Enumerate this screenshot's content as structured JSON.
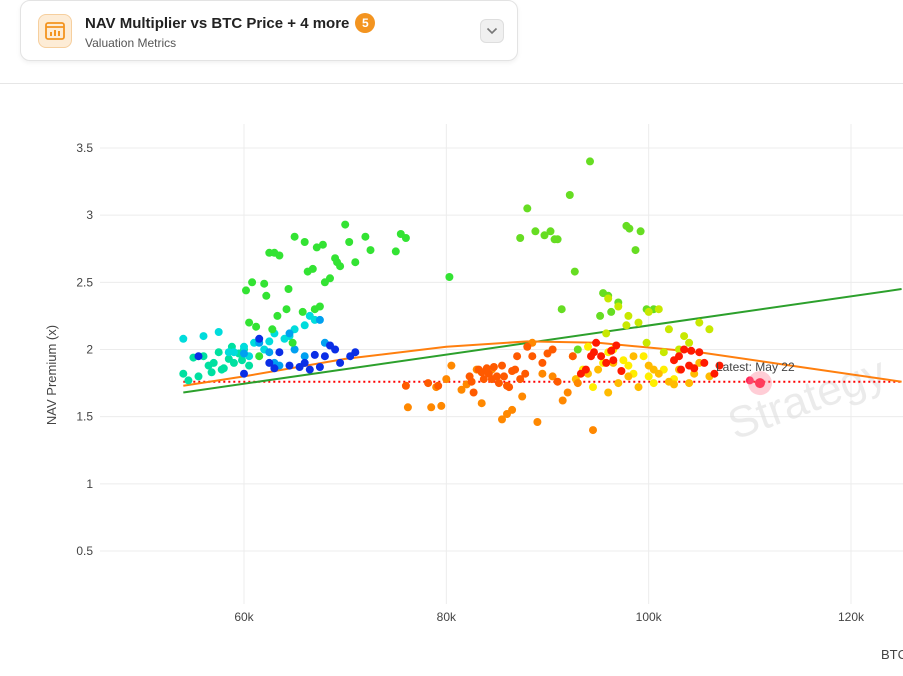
{
  "header": {
    "title": "NAV Multiplier vs BTC Price + 4 more",
    "badge": "5",
    "subtitle": "Valuation Metrics",
    "icon": "chart-icon",
    "dropdown_icon": "chevron-down-icon",
    "accent_color": "#f39420"
  },
  "chart_data": {
    "type": "scatter",
    "title": "",
    "xlabel": "BTC",
    "ylabel": "NAV Premium (x)",
    "xlim": [
      45000,
      125000
    ],
    "ylim": [
      0,
      3.6
    ],
    "x_ticks": [
      60000,
      80000,
      100000,
      120000
    ],
    "x_tick_labels": [
      "60k",
      "80k",
      "100k",
      "120k"
    ],
    "y_ticks": [
      0.5,
      1,
      1.5,
      2,
      2.5,
      3,
      3.5
    ],
    "y_tick_labels": [
      "0.5",
      "1",
      "1.5",
      "2",
      "2.5",
      "3",
      "3.5"
    ],
    "grid": true,
    "annotation": "Latest: May 22",
    "watermark": "Strategy",
    "latest_point": {
      "x": 111000,
      "y": 1.75
    },
    "reference_line": {
      "y": 1.76,
      "color": "#ff0000",
      "style": "dotted"
    },
    "trend_linear": {
      "x": [
        54000,
        125000
      ],
      "y": [
        1.68,
        2.45
      ],
      "color": "#2ca02c"
    },
    "trend_quadratic": {
      "x": [
        54000,
        60000,
        70000,
        80000,
        88000,
        95000,
        105000,
        115000,
        125000
      ],
      "y": [
        1.73,
        1.8,
        1.93,
        2.02,
        2.06,
        2.05,
        1.98,
        1.87,
        1.76
      ],
      "color": "#ff7f0e"
    },
    "series": [
      {
        "color": "#00e0a0",
        "x": [
          54000,
          54500,
          55500,
          56000,
          56500,
          57000,
          57500,
          58000,
          58500,
          59000,
          59500,
          60000,
          55000,
          57800,
          58800,
          59800,
          60500,
          56800
        ],
        "y": [
          1.82,
          1.77,
          1.8,
          1.95,
          1.88,
          1.9,
          1.98,
          1.86,
          1.93,
          1.9,
          1.97,
          2.0,
          1.94,
          1.85,
          2.02,
          1.92,
          1.88,
          1.83
        ]
      },
      {
        "color": "#00dcdc",
        "x": [
          54000,
          56000,
          57500,
          59000,
          60500,
          61000,
          62000,
          63000,
          64000,
          65000,
          66000,
          67000,
          60000,
          58500,
          62500,
          64500,
          66500
        ],
        "y": [
          2.08,
          2.1,
          2.13,
          1.98,
          1.95,
          2.05,
          2.0,
          2.12,
          2.08,
          2.15,
          2.18,
          2.22,
          2.02,
          1.98,
          2.06,
          2.1,
          2.25
        ]
      },
      {
        "color": "#00a0f0",
        "x": [
          61500,
          63000,
          64500,
          66000,
          67500,
          62500,
          65000,
          68000,
          63500,
          60000
        ],
        "y": [
          2.05,
          1.9,
          2.12,
          1.95,
          2.22,
          1.98,
          2.0,
          2.05,
          1.88,
          1.97
        ]
      },
      {
        "color": "#0a2ee6",
        "x": [
          55500,
          60000,
          61500,
          62500,
          63500,
          64500,
          65500,
          66500,
          67500,
          68500,
          69500,
          70500,
          71000,
          68000,
          66000,
          63000,
          69000,
          67000
        ],
        "y": [
          1.95,
          1.82,
          2.08,
          1.9,
          1.98,
          1.88,
          1.87,
          1.85,
          1.87,
          2.03,
          1.9,
          1.95,
          1.98,
          1.95,
          1.9,
          1.86,
          2.0,
          1.96
        ]
      },
      {
        "color": "#33e333",
        "x": [
          60200,
          60800,
          61200,
          62000,
          62200,
          62500,
          63000,
          63500,
          64200,
          65000,
          66000,
          66800,
          67200,
          67800,
          68500,
          69000,
          69500,
          70000,
          70400,
          72000,
          72500,
          75000,
          75500,
          76000,
          80300,
          60500,
          63300,
          65800,
          67500,
          69200,
          66300,
          71000,
          64400,
          68000,
          64800,
          62800,
          61500,
          67000
        ],
        "y": [
          2.44,
          2.5,
          2.17,
          2.49,
          2.4,
          2.72,
          2.72,
          2.7,
          2.3,
          2.84,
          2.8,
          2.6,
          2.76,
          2.78,
          2.53,
          2.68,
          2.62,
          2.93,
          2.8,
          2.84,
          2.74,
          2.73,
          2.86,
          2.83,
          2.54,
          2.2,
          2.25,
          2.28,
          2.32,
          2.65,
          2.58,
          2.65,
          2.45,
          2.5,
          2.05,
          2.15,
          1.95,
          2.3
        ]
      },
      {
        "color": "#66dd22",
        "x": [
          87300,
          88000,
          88800,
          89700,
          90300,
          90700,
          91000,
          91400,
          92200,
          92700,
          93000,
          94200,
          95500,
          96000,
          97000,
          97800,
          98100,
          98700,
          99200,
          99800,
          100500,
          96300,
          95200
        ],
        "y": [
          2.83,
          3.05,
          2.88,
          2.85,
          2.88,
          2.82,
          2.82,
          2.3,
          3.15,
          2.58,
          2.0,
          3.4,
          2.42,
          2.4,
          2.35,
          2.92,
          2.9,
          2.74,
          2.88,
          2.3,
          2.3,
          2.28,
          2.25
        ]
      },
      {
        "color": "#c8e800",
        "x": [
          96000,
          97000,
          98000,
          99000,
          100000,
          101000,
          102000,
          103000,
          104000,
          105000,
          106000,
          95800,
          97800,
          99800,
          101500,
          103500
        ],
        "y": [
          2.38,
          2.32,
          2.25,
          2.2,
          2.28,
          2.3,
          2.15,
          2.0,
          2.05,
          2.2,
          2.15,
          2.12,
          2.18,
          2.05,
          1.98,
          2.1
        ]
      },
      {
        "color": "#ffee00",
        "x": [
          92500,
          93500,
          94500,
          95500,
          96500,
          97500,
          98500,
          99500,
          100500,
          101500,
          102500,
          94000,
          96000,
          98000,
          100000
        ],
        "y": [
          1.95,
          1.85,
          1.72,
          1.9,
          2.0,
          1.92,
          1.82,
          1.95,
          1.75,
          1.85,
          1.78,
          2.02,
          1.98,
          1.88,
          1.8
        ]
      },
      {
        "color": "#ffbb00",
        "x": [
          92800,
          94000,
          95000,
          96000,
          97000,
          98000,
          99000,
          100000,
          101000,
          102000,
          103000,
          104000,
          105000,
          106000,
          96500,
          98500,
          100500,
          102500,
          104500
        ],
        "y": [
          1.78,
          1.82,
          1.85,
          1.68,
          1.75,
          1.8,
          1.72,
          1.88,
          1.82,
          1.76,
          1.85,
          1.75,
          1.9,
          1.8,
          1.9,
          1.95,
          1.85,
          1.74,
          1.82
        ]
      },
      {
        "color": "#ff8800",
        "x": [
          78500,
          79500,
          80500,
          81500,
          82000,
          83000,
          83500,
          84500,
          85500,
          86500,
          87500,
          88500,
          89500,
          90500,
          91500,
          92000,
          93000,
          94500,
          76200,
          79000,
          80000,
          86000,
          89000
        ],
        "y": [
          1.57,
          1.58,
          1.88,
          1.7,
          1.74,
          1.85,
          1.6,
          1.85,
          1.48,
          1.55,
          1.65,
          2.05,
          1.82,
          1.8,
          1.62,
          1.68,
          1.75,
          1.4,
          1.57,
          1.72,
          1.78,
          1.52,
          1.46
        ]
      },
      {
        "color": "#ff5a00",
        "x": [
          78200,
          79200,
          82300,
          82700,
          83200,
          83700,
          84200,
          84700,
          85200,
          85700,
          86200,
          86800,
          87300,
          87800,
          82500,
          84000,
          85000,
          86000,
          88500,
          90000,
          90500,
          91000,
          92500,
          83500,
          85500,
          87000,
          89500,
          84500,
          86500,
          76000,
          88000
        ],
        "y": [
          1.75,
          1.73,
          1.8,
          1.68,
          1.85,
          1.78,
          1.82,
          1.87,
          1.75,
          1.8,
          1.72,
          1.85,
          1.78,
          1.82,
          1.76,
          1.86,
          1.8,
          1.73,
          1.95,
          1.97,
          2.0,
          1.76,
          1.95,
          1.83,
          1.88,
          1.95,
          1.9,
          1.78,
          1.84,
          1.73,
          2.02
        ]
      },
      {
        "color": "#ff1a00",
        "x": [
          93300,
          93800,
          94300,
          94800,
          95300,
          95800,
          96300,
          96800,
          97300,
          102500,
          103000,
          103500,
          104000,
          104500,
          105000,
          105500,
          106500,
          107000,
          94600,
          103200,
          104200,
          96500
        ],
        "y": [
          1.82,
          1.85,
          1.95,
          2.05,
          1.95,
          1.9,
          1.99,
          2.03,
          1.84,
          1.92,
          1.95,
          2.0,
          1.88,
          1.86,
          1.98,
          1.9,
          1.82,
          1.88,
          1.98,
          1.85,
          1.99,
          1.92
        ]
      },
      {
        "color": "#ff2a5a",
        "x": [
          110000
        ],
        "y": [
          1.77
        ]
      }
    ]
  }
}
